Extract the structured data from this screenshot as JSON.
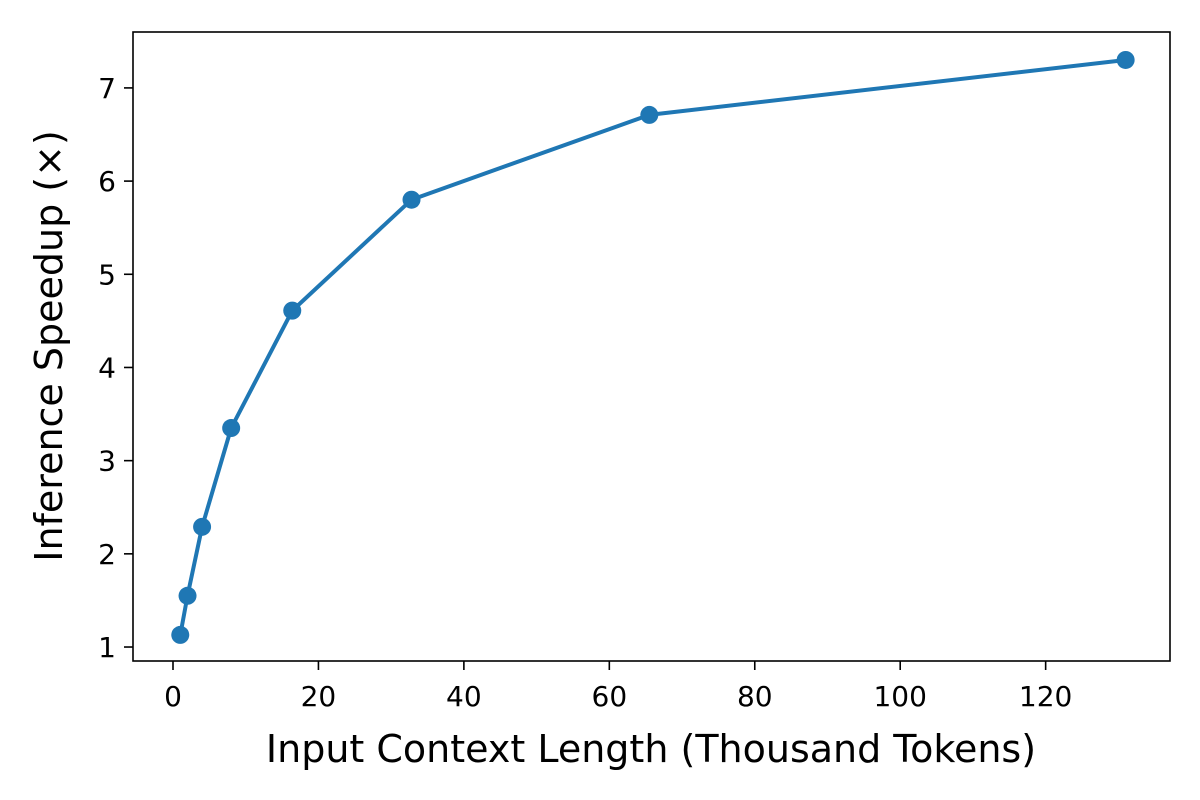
{
  "chart_data": {
    "type": "line",
    "title": "",
    "xlabel": "Input Context Length (Thousand Tokens)",
    "ylabel": "Inference Speedup (×)",
    "xlim": [
      -5.5,
      137.1
    ],
    "ylim": [
      0.85,
      7.6
    ],
    "x_ticks": [
      0,
      20,
      40,
      60,
      80,
      100,
      120
    ],
    "y_ticks": [
      1,
      2,
      3,
      4,
      5,
      6,
      7
    ],
    "grid": false,
    "line_color": "#1f77b4",
    "series": [
      {
        "x": [
          1,
          2,
          4,
          8,
          16.4,
          32.8,
          65.5,
          131
        ],
        "y": [
          1.13,
          1.55,
          2.29,
          3.35,
          4.61,
          5.8,
          6.71,
          7.3
        ]
      }
    ]
  }
}
